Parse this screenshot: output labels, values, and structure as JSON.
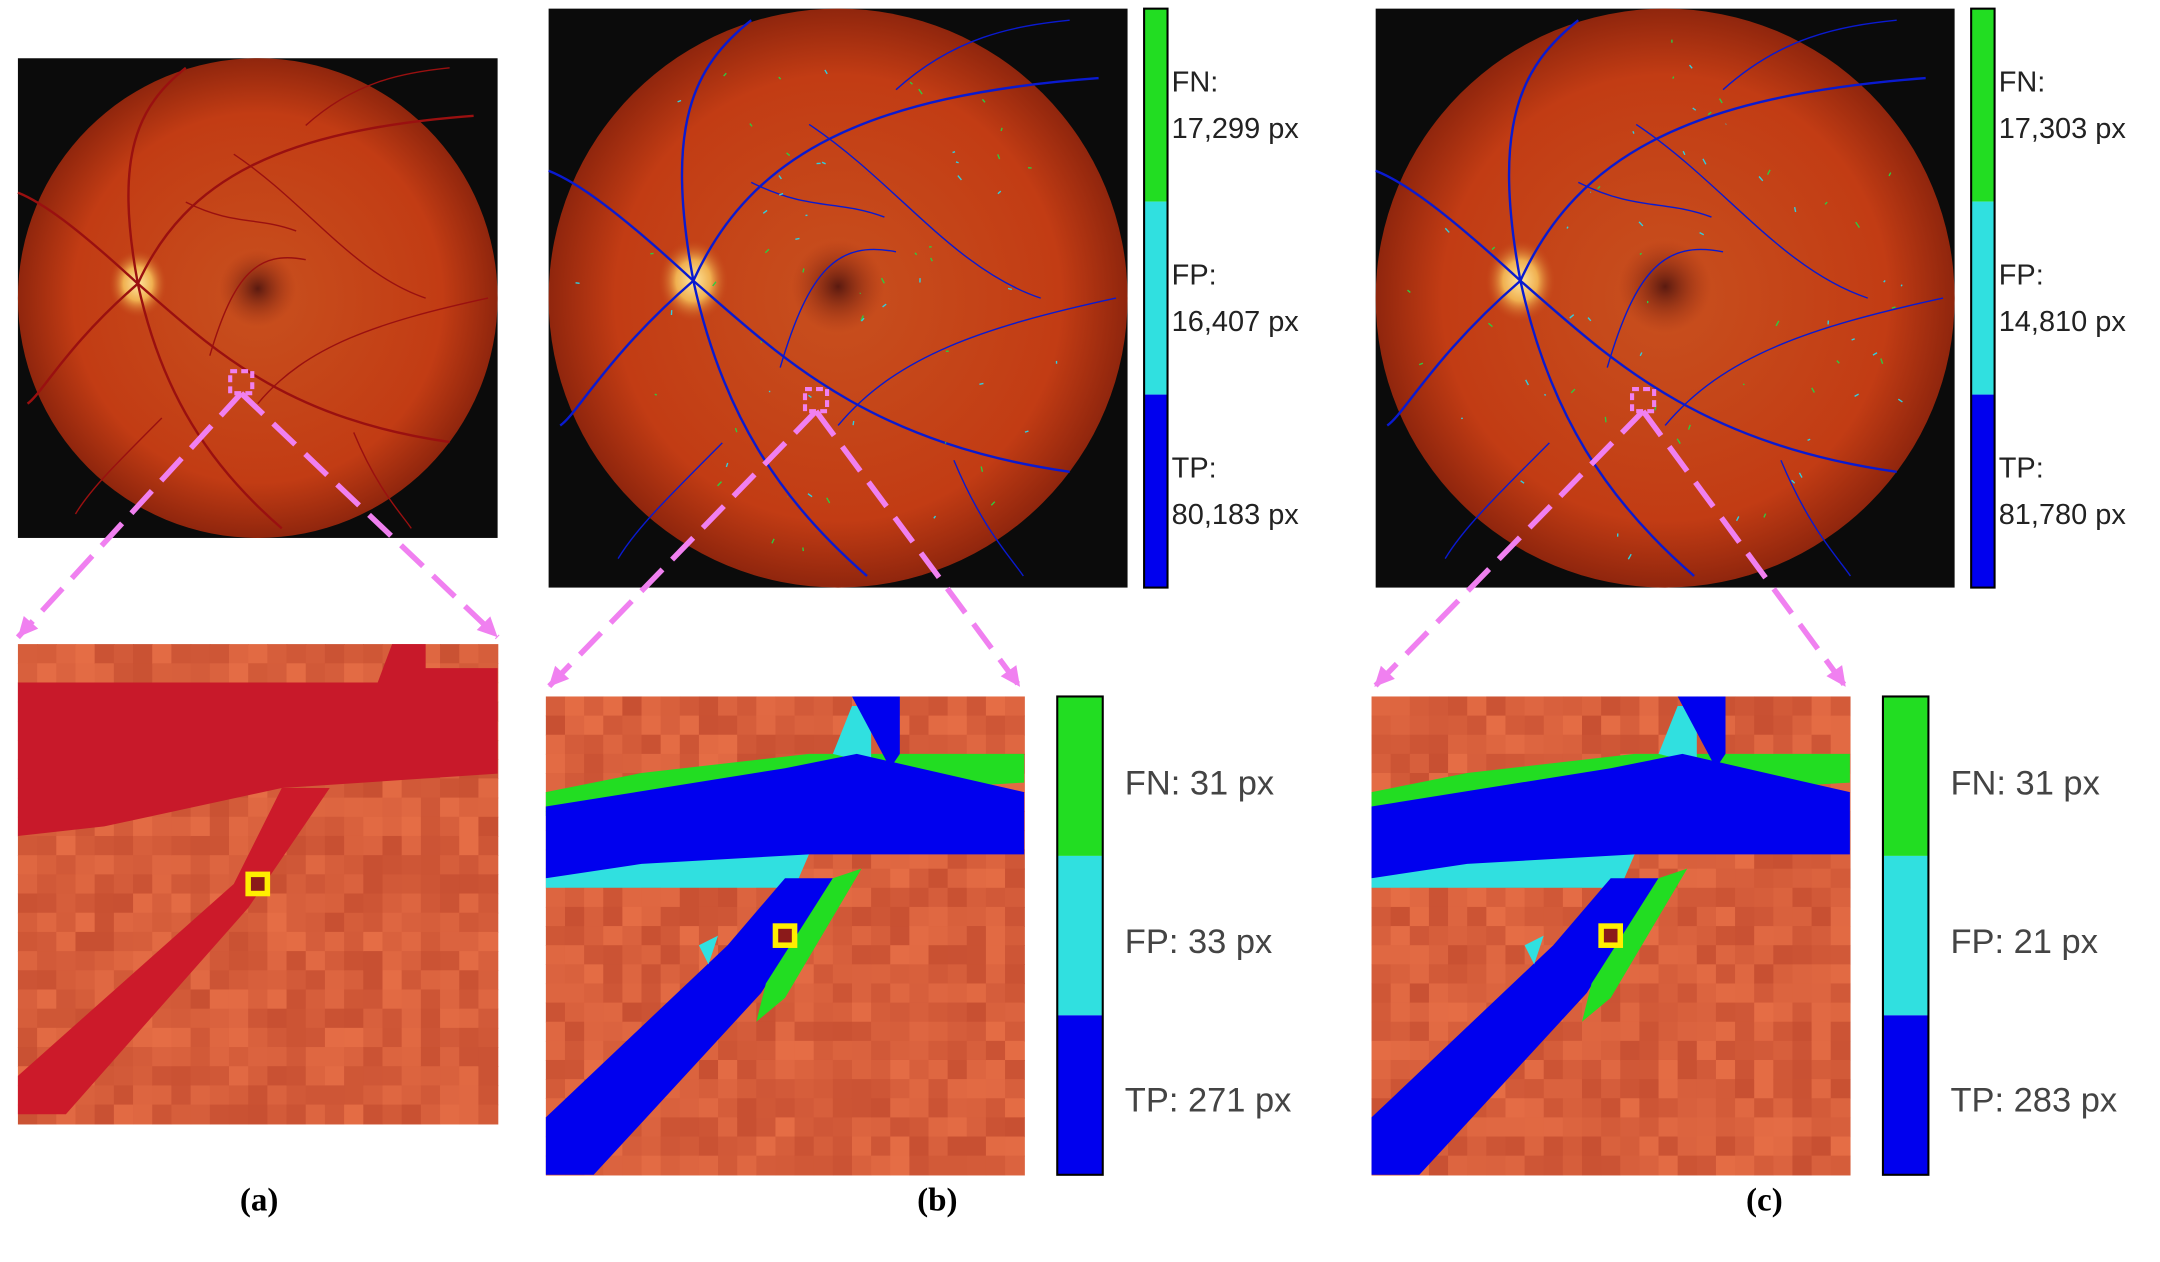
{
  "panels": [
    {
      "caption": "(a)"
    },
    {
      "caption": "(b)",
      "overview_legend": [
        {
          "label": "FN:",
          "count": "17,299 px"
        },
        {
          "label": "FP:",
          "count": "16,407 px"
        },
        {
          "label": "TP:",
          "count": "80,183 px"
        }
      ],
      "zoom_legend": [
        "FN: 31 px",
        "FP: 33 px",
        "TP: 271 px"
      ]
    },
    {
      "caption": "(c)",
      "overview_legend": [
        {
          "label": "FN:",
          "count": "17,303 px"
        },
        {
          "label": "FP:",
          "count": "14,810 px"
        },
        {
          "label": "TP:",
          "count": "81,780 px"
        }
      ],
      "zoom_legend": [
        "FN: 31 px",
        "FP: 21 px",
        "TP: 283 px"
      ]
    }
  ]
}
